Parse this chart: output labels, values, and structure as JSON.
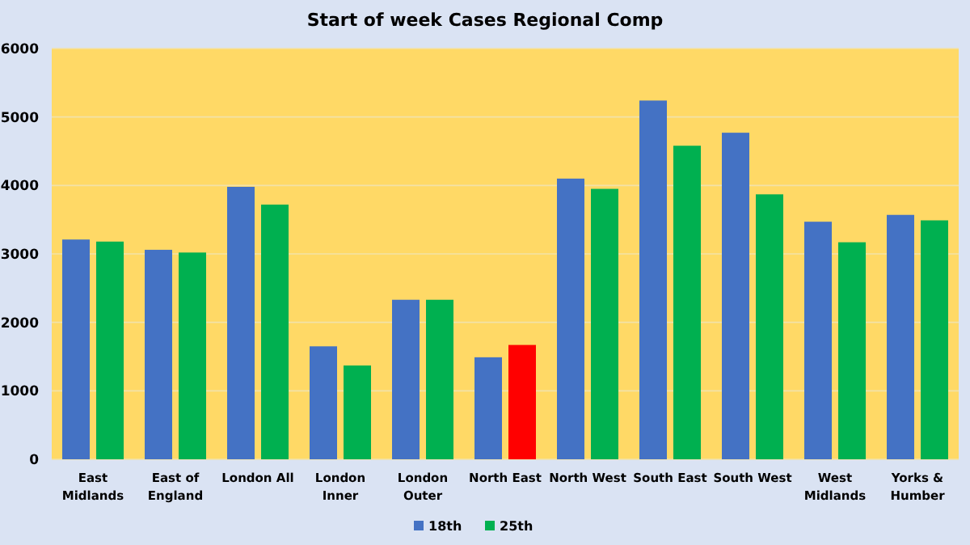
{
  "chart_data": {
    "type": "bar",
    "title": "Start of week Cases Regional Comp",
    "categories": [
      "East Midlands",
      "East of England",
      "London All",
      "London Inner",
      "London Outer",
      "North East",
      "North West",
      "South East",
      "South West",
      "West Midlands",
      "Yorks & Humber"
    ],
    "series": [
      {
        "name": "18th",
        "color": "#4472c4",
        "values": [
          3210,
          3060,
          3980,
          1650,
          2330,
          1490,
          4100,
          5240,
          4770,
          3470,
          3570
        ]
      },
      {
        "name": "25th",
        "color": "#00b050",
        "colors": [
          "#00b050",
          "#00b050",
          "#00b050",
          "#00b050",
          "#00b050",
          "#ff0000",
          "#00b050",
          "#00b050",
          "#00b050",
          "#00b050",
          "#00b050"
        ],
        "values": [
          3180,
          3020,
          3720,
          1370,
          2330,
          1670,
          3950,
          4580,
          3870,
          3170,
          3490
        ]
      }
    ],
    "ylim": [
      0,
      6000
    ],
    "yticks": [
      0,
      1000,
      2000,
      3000,
      4000,
      5000,
      6000
    ],
    "grid": "y",
    "legend": "bottom"
  }
}
